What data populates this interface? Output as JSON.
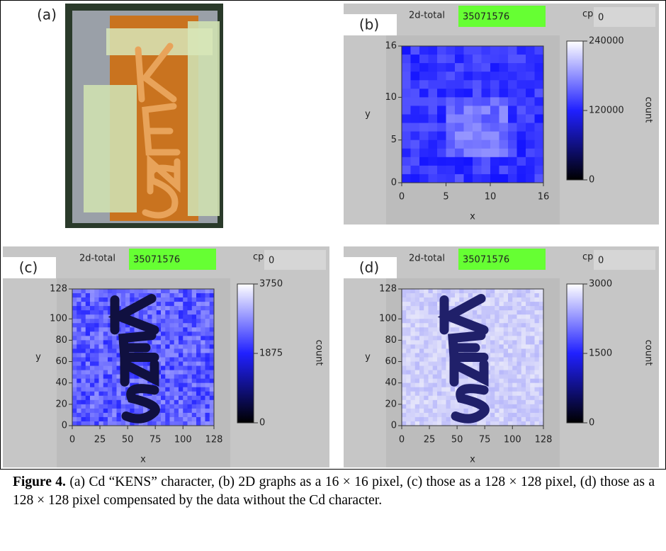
{
  "panels": [
    {
      "label": "(a)"
    },
    {
      "label": "(b)",
      "total_label": "2d-total",
      "total": 35071576,
      "cps_label": "cps",
      "cps": 0,
      "x_label": "x",
      "y_label": "y",
      "xticks": [
        0,
        5,
        10,
        16
      ],
      "yticks": [
        0,
        5,
        10,
        16
      ],
      "colorbar_ticks": [
        240000,
        120000,
        0
      ],
      "colorbar_label": "count"
    },
    {
      "label": "(c)",
      "total_label": "2d-total",
      "total": 35071576,
      "cps_label": "cps",
      "cps": 0,
      "x_label": "x",
      "y_label": "y",
      "xticks": [
        0,
        25,
        50,
        75,
        100,
        128
      ],
      "yticks": [
        0,
        20,
        40,
        60,
        80,
        100,
        128
      ],
      "colorbar_ticks": [
        3750,
        1875,
        0
      ],
      "colorbar_label": "count"
    },
    {
      "label": "(d)",
      "total_label": "2d-total",
      "total": 35071576,
      "cps_label": "cps",
      "cps": 0,
      "x_label": "x",
      "y_label": "y",
      "xticks": [
        0,
        25,
        50,
        75,
        100,
        128
      ],
      "yticks": [
        0,
        20,
        40,
        60,
        80,
        100,
        128
      ],
      "colorbar_ticks": [
        3000,
        1500,
        0
      ],
      "colorbar_label": "count"
    }
  ],
  "caption": {
    "label": "Figure 4.",
    "text": "(a) Cd “KENS” character, (b) 2D graphs as a 16 × 16 pixel, (c) those as a 128 × 128 pixel, (d) those as a 128 × 128 pixel compensated by the data without the Cd character."
  }
}
